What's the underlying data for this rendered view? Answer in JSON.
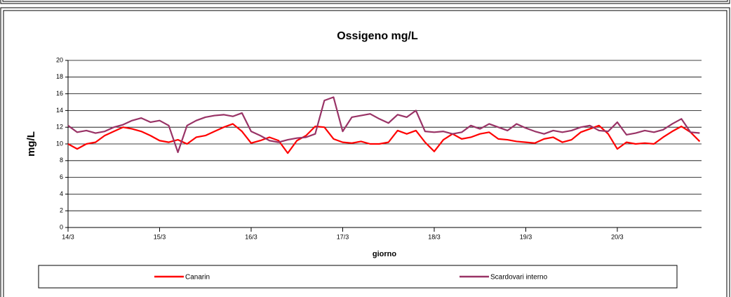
{
  "chart_data": {
    "type": "line",
    "title": "Ossigeno mg/L",
    "x_label": "giorno",
    "y_label": "mg/L",
    "x": [
      0,
      0.1,
      0.2,
      0.3,
      0.4,
      0.5,
      0.6,
      0.7,
      0.8,
      0.9,
      1,
      1.1,
      1.2,
      1.3,
      1.4,
      1.5,
      1.6,
      1.7,
      1.8,
      1.9,
      2,
      2.1,
      2.2,
      2.3,
      2.4,
      2.5,
      2.6,
      2.7,
      2.8,
      2.9,
      3,
      3.1,
      3.2,
      3.3,
      3.4,
      3.5,
      3.6,
      3.7,
      3.8,
      3.9,
      4,
      4.1,
      4.2,
      4.3,
      4.4,
      4.5,
      4.6,
      4.7,
      4.8,
      4.9,
      5,
      5.1,
      5.2,
      5.3,
      5.4,
      5.5,
      5.6,
      5.7,
      5.8,
      5.9,
      6,
      6.1,
      6.2,
      6.3,
      6.4,
      6.5,
      6.6,
      6.7,
      6.8,
      6.9
    ],
    "series": [
      {
        "name": "Canarin",
        "color": "#ff0000",
        "values": [
          10,
          9.4,
          10,
          10.2,
          11,
          11.5,
          12,
          11.8,
          11.5,
          11,
          10.4,
          10.2,
          10.5,
          10,
          10.8,
          11,
          11.5,
          12,
          12.4,
          11.5,
          10.1,
          10.4,
          10.8,
          10.4,
          8.9,
          10.4,
          11,
          12.1,
          12,
          10.6,
          10.2,
          10.1,
          10.3,
          10,
          10,
          10.2,
          11.6,
          11.2,
          11.6,
          10.2,
          9.1,
          10.5,
          11.2,
          10.6,
          10.8,
          11.2,
          11.4,
          10.6,
          10.5,
          10.3,
          10.2,
          10.1,
          10.6,
          10.8,
          10.2,
          10.5,
          11.4,
          11.8,
          12.2,
          11.2,
          9.4,
          10.2,
          10,
          10.1,
          10,
          10.8,
          11.5,
          12.1,
          11.4,
          10.3
        ]
      },
      {
        "name": "Scardovari interno",
        "color": "#993366",
        "values": [
          12.2,
          11.4,
          11.6,
          11.3,
          11.5,
          12,
          12.3,
          12.8,
          13.1,
          12.6,
          12.8,
          12.2,
          9,
          12.2,
          12.8,
          13.2,
          13.4,
          13.5,
          13.3,
          13.7,
          11.5,
          11,
          10.4,
          10.2,
          10.5,
          10.7,
          10.8,
          11.2,
          15.2,
          15.6,
          11.5,
          13.2,
          13.4,
          13.6,
          13,
          12.5,
          13.5,
          13.2,
          14,
          11.5,
          11.4,
          11.5,
          11.2,
          11.4,
          12.2,
          11.8,
          12.4,
          12,
          11.6,
          12.4,
          11.9,
          11.5,
          11.2,
          11.6,
          11.4,
          11.6,
          12,
          12.2,
          11.6,
          11.5,
          12.6,
          11.1,
          11.3,
          11.6,
          11.4,
          11.7,
          12.4,
          13,
          11.4,
          11.3
        ]
      }
    ],
    "xlim": [
      0,
      6.92
    ],
    "xticks": [
      {
        "value": 0,
        "label": "14/3"
      },
      {
        "value": 1,
        "label": "15/3"
      },
      {
        "value": 2,
        "label": "16/3"
      },
      {
        "value": 3,
        "label": "17/3"
      },
      {
        "value": 4,
        "label": "18/3"
      },
      {
        "value": 5,
        "label": "19/3"
      },
      {
        "value": 6,
        "label": "20/3"
      }
    ],
    "ylim": [
      0,
      20
    ],
    "yticks": [
      0,
      2,
      4,
      6,
      8,
      10,
      12,
      14,
      16,
      18,
      20
    ],
    "grid": true,
    "legend": "bottom"
  }
}
